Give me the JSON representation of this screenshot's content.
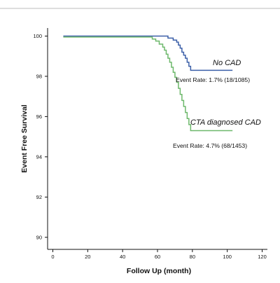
{
  "chart_data": {
    "type": "line",
    "xlabel": "Follow Up (month)",
    "ylabel": "Event Free Survival",
    "xlim": [
      -3,
      123
    ],
    "ylim": [
      89.4,
      100.4
    ],
    "x_ticks": [
      0,
      20,
      40,
      60,
      80,
      100,
      120
    ],
    "y_ticks": [
      90,
      92,
      94,
      96,
      98,
      100
    ],
    "grid": false,
    "series": [
      {
        "name": "No CAD",
        "color": "#3b5fa8",
        "step": true,
        "points": [
          [
            6,
            100
          ],
          [
            64,
            100
          ],
          [
            66,
            99.9
          ],
          [
            69,
            99.8
          ],
          [
            71,
            99.7
          ],
          [
            72,
            99.55
          ],
          [
            73,
            99.4
          ],
          [
            74,
            99.2
          ],
          [
            75,
            99.05
          ],
          [
            76,
            98.9
          ],
          [
            77,
            98.7
          ],
          [
            78,
            98.5
          ],
          [
            79,
            98.3
          ],
          [
            103,
            98.3
          ]
        ],
        "annotation": "Event Rate: 1.7% (18/1085)"
      },
      {
        "name": "CTA diagnosed CAD",
        "color": "#6db86b",
        "step": true,
        "points": [
          [
            6,
            99.95
          ],
          [
            55,
            99.95
          ],
          [
            57,
            99.85
          ],
          [
            59,
            99.75
          ],
          [
            61,
            99.6
          ],
          [
            63,
            99.45
          ],
          [
            64,
            99.3
          ],
          [
            65,
            99.1
          ],
          [
            66,
            98.9
          ],
          [
            67,
            98.7
          ],
          [
            68,
            98.45
          ],
          [
            69,
            98.2
          ],
          [
            70,
            97.95
          ],
          [
            71,
            97.7
          ],
          [
            72,
            97.4
          ],
          [
            73,
            97.1
          ],
          [
            74,
            96.8
          ],
          [
            75,
            96.5
          ],
          [
            76,
            96.2
          ],
          [
            77,
            95.9
          ],
          [
            78,
            95.6
          ],
          [
            79,
            95.3
          ],
          [
            103,
            95.3
          ]
        ],
        "annotation": "Event Rate: 4.7% (68/1453)"
      }
    ]
  }
}
